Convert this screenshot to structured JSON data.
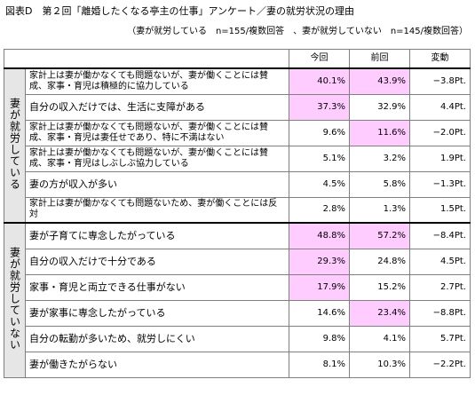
{
  "title": "図表D　第２回「離婚したくなる亭主の仕事」アンケート／妻の就労状況の理由",
  "note": "（妻が就労している　n=155/複数回答　、妻が就労していない　n=145/複数回答）",
  "headers": {
    "current": "今回",
    "previous": "前回",
    "change": "変動"
  },
  "groups": [
    {
      "label": "妻が就労している",
      "rows": [
        {
          "label": "家計上は妻が働かなくても問題ないが、妻が働くことには賛成、家事・育児は積極的に協力している",
          "current": "40.1%",
          "previous": "43.9%",
          "change": "−3.8Pt.",
          "hl_current": true,
          "hl_previous": true
        },
        {
          "label": "自分の収入だけでは、生活に支障がある",
          "current": "37.3%",
          "previous": "32.9%",
          "change": "4.4Pt.",
          "hl_current": true,
          "hl_previous": false
        },
        {
          "label": "家計上は妻が働かなくても問題ないが、妻が働くことには賛成、家事・育児は妻任せであり、特に不満はない",
          "current": "9.6%",
          "previous": "11.6%",
          "change": "−2.0Pt.",
          "hl_current": false,
          "hl_previous": true
        },
        {
          "label": "家計上は妻が働かなくても問題ないが、妻が働くことには賛成、家事・育児はしぶしぶ協力している",
          "current": "5.1%",
          "previous": "3.2%",
          "change": "1.9Pt.",
          "hl_current": false,
          "hl_previous": false
        },
        {
          "label": "妻の方が収入が多い",
          "current": "4.5%",
          "previous": "5.8%",
          "change": "−1.3Pt.",
          "hl_current": false,
          "hl_previous": false
        },
        {
          "label": "家計上は妻が働かなくても問題ないため、妻が働くことには反対",
          "current": "2.8%",
          "previous": "1.3%",
          "change": "1.5Pt.",
          "hl_current": false,
          "hl_previous": false
        }
      ]
    },
    {
      "label": "妻が就労していない",
      "rows": [
        {
          "label": "妻が子育てに専念したがっている",
          "current": "48.8%",
          "previous": "57.2%",
          "change": "−8.4Pt.",
          "hl_current": true,
          "hl_previous": true
        },
        {
          "label": "自分の収入だけで十分である",
          "current": "29.3%",
          "previous": "24.8%",
          "change": "4.5Pt.",
          "hl_current": true,
          "hl_previous": false
        },
        {
          "label": "家事・育児と両立できる仕事がない",
          "current": "17.9%",
          "previous": "15.2%",
          "change": "2.7Pt.",
          "hl_current": true,
          "hl_previous": false
        },
        {
          "label": "妻が家事に専念したがっている",
          "current": "14.6%",
          "previous": "23.4%",
          "change": "−8.8Pt.",
          "hl_current": false,
          "hl_previous": true
        },
        {
          "label": "自分の転勤が多いため、就労しにくい",
          "current": "9.8%",
          "previous": "4.1%",
          "change": "5.7Pt.",
          "hl_current": false,
          "hl_previous": false
        },
        {
          "label": "妻が働きたがらない",
          "current": "8.1%",
          "previous": "10.3%",
          "change": "−2.2Pt.",
          "hl_current": false,
          "hl_previous": false
        }
      ]
    }
  ]
}
